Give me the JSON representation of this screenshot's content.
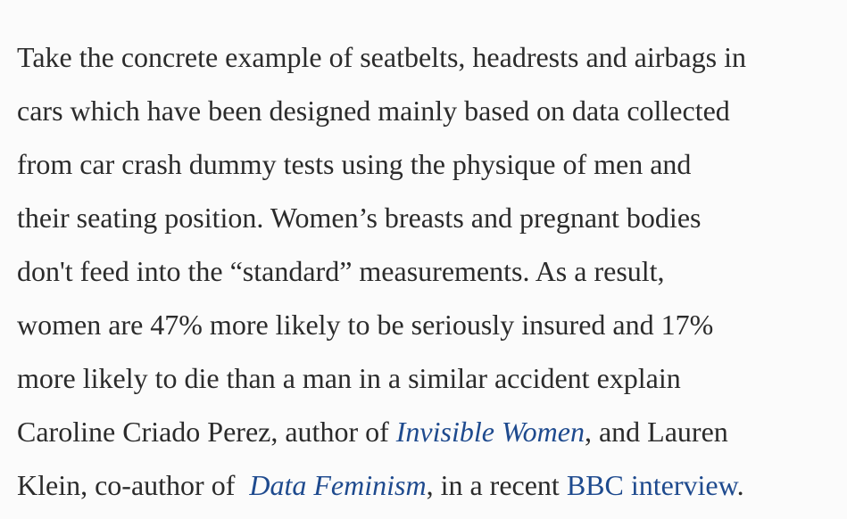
{
  "article": {
    "lines": [
      "Take the concrete example of seatbelts, headrests and airbags in",
      "cars which have been designed mainly based on data collected",
      "from car crash dummy tests using the physique of men and",
      "their seating position. Women’s breasts and pregnant bodies",
      "don't feed into the “standard” measurements. As a result,",
      "women are 47% more likely to be seriously insured and 17%",
      "more likely to die than a man in a similar accident explain"
    ],
    "line8_prefix": "Caroline Criado Perez, author of ",
    "book1_title": "Invisible Women",
    "line8_suffix": ", and Lauren",
    "line9_prefix": "Klein, co-author of  ",
    "book2_title": "Data Feminism",
    "line9_middle": ", in a recent ",
    "interview_link": "BBC interview",
    "line9_suffix": "."
  },
  "colors": {
    "text": "#2b2b2b",
    "link": "#1e4a8e",
    "background": "#fbfbfb"
  }
}
